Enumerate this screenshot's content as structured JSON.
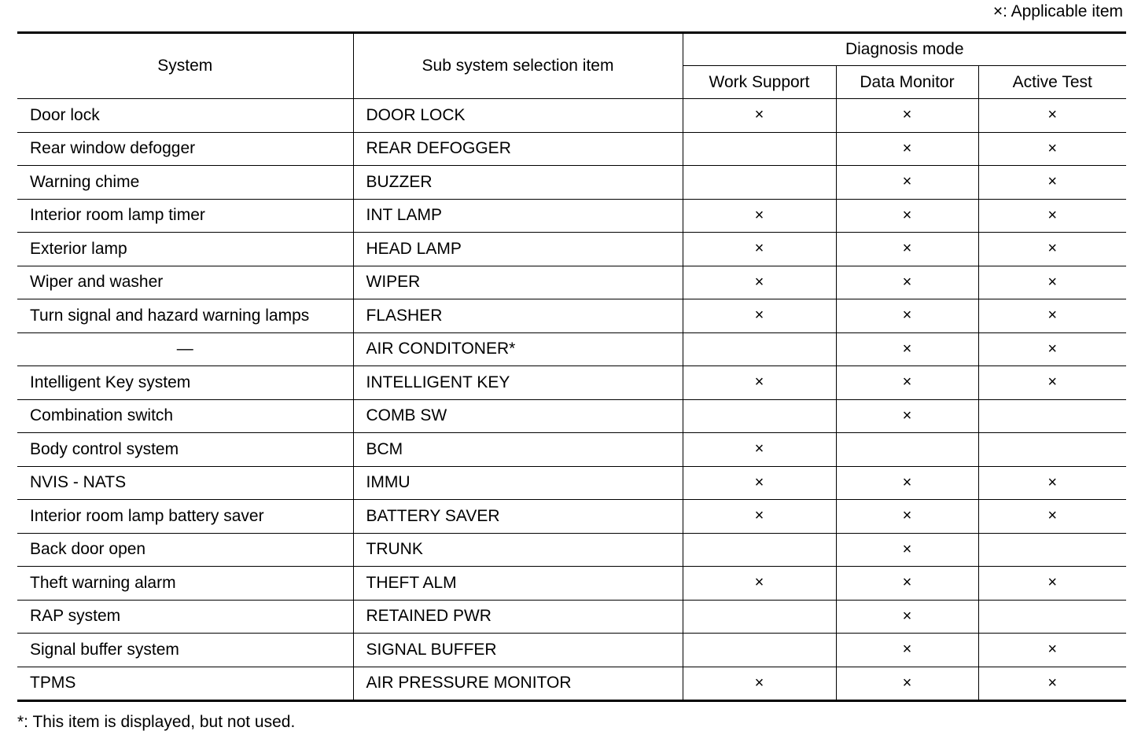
{
  "legend": "×: Applicable item",
  "footnote": "*: This item is displayed, but not used.",
  "headers": {
    "system": "System",
    "sub_system": "Sub system selection item",
    "diagnosis_mode": "Diagnosis mode",
    "work_support": "Work Support",
    "data_monitor": "Data Monitor",
    "active_test": "Active Test"
  },
  "mark": "×",
  "rows": [
    {
      "system": "Door lock",
      "sub": "DOOR LOCK",
      "ws": true,
      "dm": true,
      "at": true
    },
    {
      "system": "Rear window defogger",
      "sub": "REAR DEFOGGER",
      "ws": false,
      "dm": true,
      "at": true
    },
    {
      "system": "Warning chime",
      "sub": "BUZZER",
      "ws": false,
      "dm": true,
      "at": true
    },
    {
      "system": "Interior room lamp timer",
      "sub": "INT LAMP",
      "ws": true,
      "dm": true,
      "at": true
    },
    {
      "system": "Exterior lamp",
      "sub": "HEAD LAMP",
      "ws": true,
      "dm": true,
      "at": true
    },
    {
      "system": "Wiper and washer",
      "sub": "WIPER",
      "ws": true,
      "dm": true,
      "at": true
    },
    {
      "system": "Turn signal and hazard warning lamps",
      "sub": "FLASHER",
      "ws": true,
      "dm": true,
      "at": true
    },
    {
      "system": "—",
      "sub": "AIR CONDITONER*",
      "ws": false,
      "dm": true,
      "at": true
    },
    {
      "system": "Intelligent Key system",
      "sub": "INTELLIGENT KEY",
      "ws": true,
      "dm": true,
      "at": true
    },
    {
      "system": "Combination switch",
      "sub": "COMB SW",
      "ws": false,
      "dm": true,
      "at": false
    },
    {
      "system": "Body control system",
      "sub": "BCM",
      "ws": true,
      "dm": false,
      "at": false
    },
    {
      "system": "NVIS - NATS",
      "sub": "IMMU",
      "ws": true,
      "dm": true,
      "at": true
    },
    {
      "system": "Interior room lamp battery saver",
      "sub": "BATTERY SAVER",
      "ws": true,
      "dm": true,
      "at": true
    },
    {
      "system": "Back door open",
      "sub": "TRUNK",
      "ws": false,
      "dm": true,
      "at": false
    },
    {
      "system": "Theft warning alarm",
      "sub": "THEFT ALM",
      "ws": true,
      "dm": true,
      "at": true
    },
    {
      "system": "RAP system",
      "sub": "RETAINED PWR",
      "ws": false,
      "dm": true,
      "at": false
    },
    {
      "system": "Signal buffer system",
      "sub": "SIGNAL BUFFER",
      "ws": false,
      "dm": true,
      "at": true
    },
    {
      "system": "TPMS",
      "sub": "AIR PRESSURE MONITOR",
      "ws": true,
      "dm": true,
      "at": true
    }
  ]
}
